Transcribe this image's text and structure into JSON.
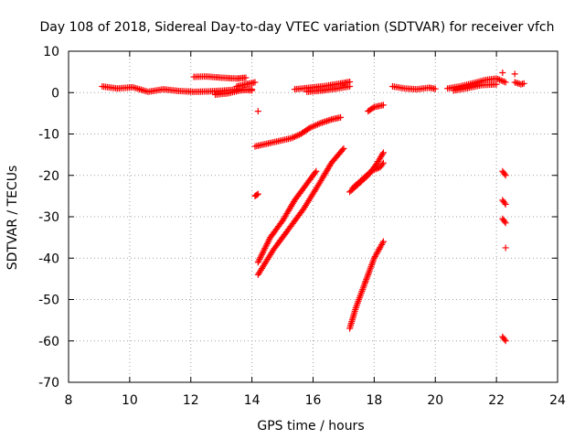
{
  "chart_data": {
    "type": "scatter",
    "title": "Day 108 of 2018, Sidereal Day-to-day VTEC variation (SDTVAR) for receiver vfch",
    "xlabel": "GPS time / hours",
    "ylabel": "SDTVAR / TECUs",
    "xlim": [
      8,
      24
    ],
    "ylim": [
      -70,
      10
    ],
    "xticks": [
      8,
      10,
      12,
      14,
      16,
      18,
      20,
      22,
      24
    ],
    "yticks": [
      10,
      0,
      -10,
      -20,
      -30,
      -40,
      -50,
      -60,
      -70
    ],
    "grid": true,
    "legend": "none",
    "marker": "+",
    "color": "#ff0000",
    "segments": [
      {
        "x": [
          9.1,
          9.6,
          10.1,
          10.6,
          11.1,
          11.6,
          12.1,
          12.6,
          13.1,
          13.6,
          14.0
        ],
        "y": [
          1.5,
          1.0,
          1.3,
          0.2,
          0.8,
          0.4,
          0.2,
          0.3,
          0.5,
          0.8,
          0.5
        ]
      },
      {
        "x": [
          12.1,
          12.5,
          13.0,
          13.5,
          13.8
        ],
        "y": [
          3.8,
          3.9,
          3.6,
          3.4,
          3.6
        ]
      },
      {
        "x": [
          12.8,
          13.2,
          13.6,
          14.0
        ],
        "y": [
          -0.5,
          -0.2,
          0.5,
          0.8
        ]
      },
      {
        "x": [
          13.5,
          13.8,
          14.1
        ],
        "y": [
          1.5,
          2.0,
          2.5
        ]
      },
      {
        "x": [
          14.2
        ],
        "y": [
          -4.5
        ]
      },
      {
        "x": [
          14.1,
          14.7,
          15.3,
          15.6,
          15.9,
          16.2,
          16.6,
          16.9
        ],
        "y": [
          -13,
          -12,
          -11,
          -10,
          -8.5,
          -7.5,
          -6.5,
          -6
        ]
      },
      {
        "x": [
          14.1,
          14.2
        ],
        "y": [
          -25,
          -24.5
        ]
      },
      {
        "x": [
          14.2,
          14.6,
          15.0,
          15.4,
          15.8,
          16.1
        ],
        "y": [
          -41,
          -35,
          -31,
          -26,
          -22,
          -19
        ]
      },
      {
        "x": [
          14.2,
          14.7,
          15.2,
          15.7,
          16.2,
          16.6,
          17.0
        ],
        "y": [
          -44,
          -38,
          -33,
          -28,
          -22,
          -17,
          -13.5
        ]
      },
      {
        "x": [
          15.4,
          15.9,
          16.4,
          16.9,
          17.2
        ],
        "y": [
          0.8,
          1.2,
          1.6,
          2.2,
          2.6
        ]
      },
      {
        "x": [
          15.8,
          16.3,
          16.8,
          17.2
        ],
        "y": [
          0.2,
          0.5,
          1.0,
          1.5
        ]
      },
      {
        "x": [
          17.2,
          17.4,
          17.6,
          17.8,
          18.0,
          18.3
        ],
        "y": [
          -57,
          -52,
          -48,
          -44,
          -40,
          -36
        ]
      },
      {
        "x": [
          17.2,
          17.5,
          17.8,
          18.1,
          18.3
        ],
        "y": [
          -24,
          -22,
          -20,
          -17,
          -14.5
        ]
      },
      {
        "x": [
          17.3,
          17.6,
          17.9,
          18.2,
          18.3
        ],
        "y": [
          -23,
          -21,
          -19,
          -18,
          -17
        ]
      },
      {
        "x": [
          17.8,
          18.0,
          18.3
        ],
        "y": [
          -4.5,
          -3.5,
          -3
        ]
      },
      {
        "x": [
          18.6,
          19.0,
          19.4,
          19.8,
          20.0
        ],
        "y": [
          1.5,
          1.0,
          0.8,
          1.2,
          0.9
        ]
      },
      {
        "x": [
          20.4,
          20.8,
          21.2,
          21.6,
          22.0,
          22.3
        ],
        "y": [
          1.0,
          1.5,
          2.2,
          3.0,
          3.4,
          2.5
        ]
      },
      {
        "x": [
          20.6,
          21.0,
          21.5,
          22.0
        ],
        "y": [
          0.5,
          1.0,
          1.8,
          2.0
        ]
      },
      {
        "x": [
          22.2
        ],
        "y": [
          4.8
        ]
      },
      {
        "x": [
          22.6,
          22.8,
          22.9
        ],
        "y": [
          2.5,
          2.0,
          2.2
        ]
      },
      {
        "x": [
          22.6
        ],
        "y": [
          4.5
        ]
      },
      {
        "x": [
          22.2,
          22.3
        ],
        "y": [
          -19,
          -20
        ]
      },
      {
        "x": [
          22.2,
          22.3
        ],
        "y": [
          -26,
          -27
        ]
      },
      {
        "x": [
          22.2,
          22.3
        ],
        "y": [
          -30.5,
          -31.5
        ]
      },
      {
        "x": [
          22.3
        ],
        "y": [
          -37.5
        ]
      },
      {
        "x": [
          22.2,
          22.3
        ],
        "y": [
          -59,
          -60
        ]
      }
    ]
  }
}
